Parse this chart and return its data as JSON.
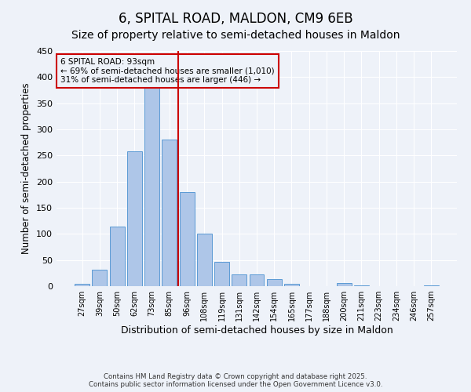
{
  "title": "6, SPITAL ROAD, MALDON, CM9 6EB",
  "subtitle": "Size of property relative to semi-detached houses in Maldon",
  "xlabel": "Distribution of semi-detached houses by size in Maldon",
  "ylabel": "Number of semi-detached properties",
  "categories": [
    "27sqm",
    "39sqm",
    "50sqm",
    "62sqm",
    "73sqm",
    "85sqm",
    "96sqm",
    "108sqm",
    "119sqm",
    "131sqm",
    "142sqm",
    "154sqm",
    "165sqm",
    "177sqm",
    "188sqm",
    "200sqm",
    "211sqm",
    "223sqm",
    "234sqm",
    "246sqm",
    "257sqm"
  ],
  "values": [
    5,
    31,
    114,
    258,
    379,
    281,
    180,
    100,
    47,
    22,
    22,
    13,
    5,
    0,
    0,
    6,
    2,
    0,
    0,
    0,
    1
  ],
  "bar_color": "#aec6e8",
  "bar_edge_color": "#5b9bd5",
  "vline_x": 5.5,
  "vline_color": "#cc0000",
  "annotation_title": "6 SPITAL ROAD: 93sqm",
  "annotation_line1": "← 69% of semi-detached houses are smaller (1,010)",
  "annotation_line2": "31% of semi-detached houses are larger (446) →",
  "annotation_box_color": "#cc0000",
  "ylim": [
    0,
    450
  ],
  "yticks": [
    0,
    50,
    100,
    150,
    200,
    250,
    300,
    350,
    400,
    450
  ],
  "footer_line1": "Contains HM Land Registry data © Crown copyright and database right 2025.",
  "footer_line2": "Contains public sector information licensed under the Open Government Licence v3.0.",
  "bg_color": "#eef2f9",
  "title_fontsize": 12,
  "subtitle_fontsize": 10
}
